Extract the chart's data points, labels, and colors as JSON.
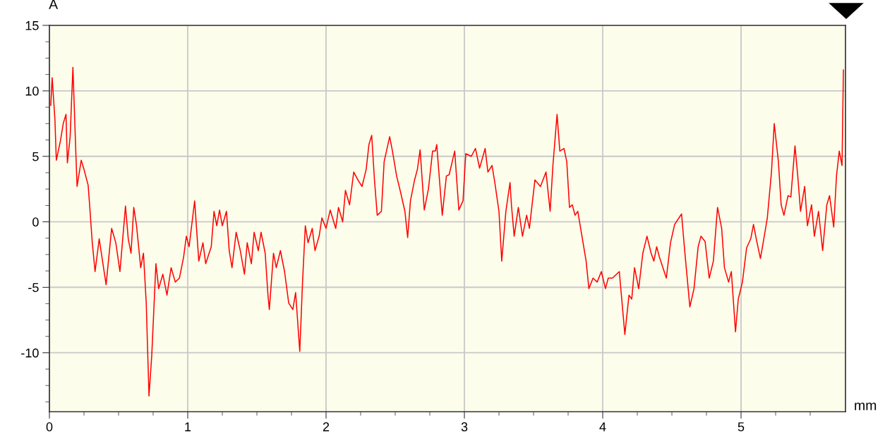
{
  "chart_data": {
    "type": "line",
    "xlabel": "mm",
    "ylabel": "A",
    "x": [
      0.01,
      0.02,
      0.04,
      0.05,
      0.08,
      0.1,
      0.12,
      0.13,
      0.15,
      0.17,
      0.19,
      0.2,
      0.23,
      0.25,
      0.28,
      0.29,
      0.31,
      0.33,
      0.36,
      0.38,
      0.41,
      0.45,
      0.48,
      0.51,
      0.55,
      0.57,
      0.59,
      0.61,
      0.63,
      0.66,
      0.68,
      0.7,
      0.72,
      0.74,
      0.77,
      0.79,
      0.82,
      0.85,
      0.88,
      0.91,
      0.94,
      0.97,
      0.99,
      1.01,
      1.05,
      1.08,
      1.11,
      1.13,
      1.17,
      1.19,
      1.21,
      1.23,
      1.25,
      1.28,
      1.3,
      1.32,
      1.35,
      1.38,
      1.41,
      1.43,
      1.46,
      1.48,
      1.51,
      1.53,
      1.56,
      1.58,
      1.59,
      1.62,
      1.64,
      1.67,
      1.7,
      1.73,
      1.76,
      1.78,
      1.81,
      1.83,
      1.85,
      1.87,
      1.9,
      1.92,
      1.95,
      1.97,
      2.0,
      2.03,
      2.07,
      2.09,
      2.12,
      2.14,
      2.17,
      2.2,
      2.23,
      2.26,
      2.29,
      2.31,
      2.33,
      2.35,
      2.37,
      2.4,
      2.42,
      2.46,
      2.48,
      2.51,
      2.54,
      2.57,
      2.59,
      2.61,
      2.64,
      2.66,
      2.68,
      2.71,
      2.74,
      2.77,
      2.79,
      2.8,
      2.84,
      2.87,
      2.89,
      2.93,
      2.96,
      2.99,
      3.01,
      3.05,
      3.08,
      3.11,
      3.15,
      3.17,
      3.2,
      3.22,
      3.25,
      3.27,
      3.3,
      3.33,
      3.34,
      3.36,
      3.39,
      3.42,
      3.45,
      3.47,
      3.51,
      3.55,
      3.59,
      3.62,
      3.64,
      3.67,
      3.69,
      3.72,
      3.74,
      3.76,
      3.78,
      3.8,
      3.82,
      3.85,
      3.88,
      3.9,
      3.93,
      3.96,
      3.99,
      4.02,
      4.04,
      4.07,
      4.12,
      4.14,
      4.16,
      4.19,
      4.21,
      4.23,
      4.26,
      4.29,
      4.32,
      4.35,
      4.37,
      4.39,
      4.41,
      4.46,
      4.49,
      4.52,
      4.57,
      4.59,
      4.63,
      4.66,
      4.69,
      4.71,
      4.74,
      4.77,
      4.8,
      4.83,
      4.86,
      4.88,
      4.91,
      4.93,
      4.96,
      4.98,
      5.01,
      5.04,
      5.07,
      5.09,
      5.11,
      5.14,
      5.16,
      5.19,
      5.22,
      5.24,
      5.27,
      5.29,
      5.31,
      5.34,
      5.36,
      5.39,
      5.41,
      5.43,
      5.46,
      5.48,
      5.51,
      5.53,
      5.56,
      5.59,
      5.62,
      5.64,
      5.67,
      5.69,
      5.71,
      5.73,
      5.74
    ],
    "series": [
      {
        "color": "#ff0000",
        "values": [
          8.9,
          11.0,
          7.8,
          4.7,
          6.2,
          7.5,
          8.2,
          4.5,
          6.5,
          11.8,
          5.6,
          2.7,
          4.7,
          4.0,
          2.8,
          1.4,
          -1.6,
          -3.8,
          -1.3,
          -2.7,
          -4.8,
          -0.5,
          -1.6,
          -3.8,
          1.2,
          -1.3,
          -2.4,
          1.1,
          -0.3,
          -3.5,
          -2.4,
          -6.2,
          -13.3,
          -10.2,
          -3.2,
          -5.1,
          -4.0,
          -5.6,
          -3.5,
          -4.6,
          -4.3,
          -2.7,
          -1.1,
          -1.9,
          1.6,
          -3.0,
          -1.6,
          -3.2,
          -1.9,
          0.8,
          -0.3,
          0.9,
          -0.3,
          0.8,
          -2.2,
          -3.5,
          -0.8,
          -2.2,
          -4.0,
          -1.6,
          -3.2,
          -0.8,
          -2.2,
          -0.8,
          -2.4,
          -5.6,
          -6.7,
          -2.4,
          -3.5,
          -2.2,
          -3.8,
          -6.2,
          -6.7,
          -5.4,
          -9.9,
          -4.6,
          -0.3,
          -1.6,
          -0.5,
          -2.2,
          -1.1,
          0.3,
          -0.5,
          0.9,
          -0.5,
          1.1,
          0.0,
          2.4,
          1.3,
          3.8,
          3.2,
          2.7,
          4.0,
          5.9,
          6.6,
          3.2,
          0.5,
          0.8,
          4.6,
          6.5,
          5.4,
          3.5,
          2.2,
          0.8,
          -1.2,
          1.6,
          3.2,
          4.0,
          5.5,
          0.9,
          2.5,
          5.4,
          5.4,
          5.9,
          0.5,
          3.5,
          3.6,
          5.4,
          0.9,
          1.6,
          5.2,
          5.0,
          5.6,
          4.1,
          5.6,
          3.8,
          4.3,
          3.0,
          0.8,
          -3.0,
          0.8,
          3.0,
          1.3,
          -1.1,
          1.1,
          -1.1,
          0.5,
          -0.5,
          3.2,
          2.7,
          3.8,
          0.8,
          4.3,
          8.2,
          5.4,
          5.6,
          4.6,
          1.1,
          1.3,
          0.5,
          0.8,
          -1.1,
          -3.0,
          -5.1,
          -4.3,
          -4.6,
          -3.8,
          -5.1,
          -4.3,
          -4.3,
          -3.8,
          -6.2,
          -8.6,
          -5.6,
          -5.9,
          -3.5,
          -5.1,
          -2.4,
          -1.1,
          -2.4,
          -3.0,
          -1.9,
          -2.7,
          -4.3,
          -1.6,
          -0.2,
          0.6,
          -1.9,
          -6.5,
          -5.1,
          -1.9,
          -1.1,
          -1.5,
          -4.3,
          -3.0,
          1.1,
          -0.5,
          -3.5,
          -4.6,
          -3.8,
          -8.4,
          -5.9,
          -4.6,
          -2.0,
          -1.3,
          -0.2,
          -1.3,
          -2.8,
          -1.6,
          0.3,
          3.8,
          7.5,
          4.6,
          1.3,
          0.5,
          2.0,
          1.9,
          5.8,
          3.5,
          0.8,
          2.7,
          -0.3,
          1.3,
          -1.1,
          0.8,
          -2.2,
          1.3,
          2.0,
          -0.4,
          3.5,
          5.4,
          4.3,
          11.6
        ]
      }
    ],
    "xlim": [
      0,
      5.755
    ],
    "ylim": [
      -14.5,
      15
    ],
    "xticks": [
      0,
      {
        "value": 0.25,
        "label": null
      },
      {
        "value": 0.5,
        "label": null
      },
      {
        "value": 0.75,
        "label": null
      },
      1,
      {
        "value": 1.25,
        "label": null
      },
      {
        "value": 1.5,
        "label": null
      },
      {
        "value": 1.75,
        "label": null
      },
      2,
      {
        "value": 2.25,
        "label": null
      },
      {
        "value": 2.5,
        "label": null
      },
      {
        "value": 2.75,
        "label": null
      },
      3,
      {
        "value": 3.25,
        "label": null
      },
      {
        "value": 3.5,
        "label": null
      },
      {
        "value": 3.75,
        "label": null
      },
      4,
      {
        "value": 4.25,
        "label": null
      },
      {
        "value": 4.5,
        "label": null
      },
      {
        "value": 4.75,
        "label": null
      },
      5,
      {
        "value": 5.25,
        "label": null
      },
      {
        "value": 5.5,
        "label": null
      }
    ],
    "yticks": [
      {
        "value": -13.75,
        "label": null
      },
      {
        "value": -12.5,
        "label": null
      },
      {
        "value": -11.25,
        "label": null
      },
      -10,
      {
        "value": -8.75,
        "label": null
      },
      {
        "value": -7.5,
        "label": null
      },
      {
        "value": -6.25,
        "label": null
      },
      -5,
      {
        "value": -3.75,
        "label": null
      },
      {
        "value": -2.5,
        "label": null
      },
      {
        "value": -1.25,
        "label": null
      },
      0,
      {
        "value": 1.25,
        "label": null
      },
      {
        "value": 2.5,
        "label": null
      },
      {
        "value": 3.75,
        "label": null
      },
      5,
      {
        "value": 6.25,
        "label": null
      },
      {
        "value": 7.5,
        "label": null
      },
      {
        "value": 8.75,
        "label": null
      },
      10,
      {
        "value": 11.25,
        "label": null
      },
      {
        "value": 12.5,
        "label": null
      },
      {
        "value": 13.75,
        "label": null
      },
      15
    ],
    "grid": true,
    "marker": "none",
    "line_style": "solid",
    "legend": false
  }
}
